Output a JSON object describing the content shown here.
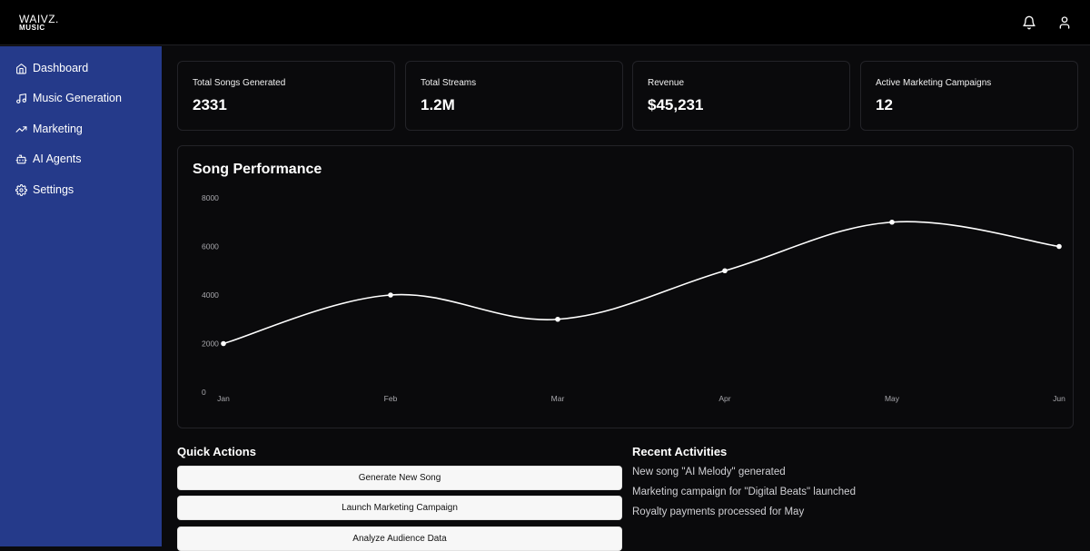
{
  "brand": {
    "line1": "WAIVZ.",
    "line2": "MUSIC"
  },
  "header": {
    "icons": [
      "bell-icon",
      "user-icon"
    ]
  },
  "sidebar": {
    "items": [
      {
        "label": "Dashboard",
        "icon": "home-icon"
      },
      {
        "label": "Music Generation",
        "icon": "music-icon"
      },
      {
        "label": "Marketing",
        "icon": "trending-icon"
      },
      {
        "label": "AI Agents",
        "icon": "bot-icon"
      },
      {
        "label": "Settings",
        "icon": "gear-icon"
      }
    ]
  },
  "stats": [
    {
      "label": "Total Songs Generated",
      "value": "2331"
    },
    {
      "label": "Total Streams",
      "value": "1.2M"
    },
    {
      "label": "Revenue",
      "value": "$45,231"
    },
    {
      "label": "Active Marketing Campaigns",
      "value": "12"
    }
  ],
  "chart_data": {
    "type": "line",
    "title": "Song Performance",
    "categories": [
      "Jan",
      "Feb",
      "Mar",
      "Apr",
      "May",
      "Jun"
    ],
    "values": [
      2000,
      4000,
      3000,
      5000,
      7000,
      6000
    ],
    "yticks": [
      "0",
      "2000",
      "4000",
      "6000",
      "8000"
    ],
    "ylim": [
      0,
      8000
    ],
    "xlabel": "",
    "ylabel": "",
    "grid": false,
    "line_color": "#ffffff"
  },
  "quick_actions": {
    "title": "Quick Actions",
    "buttons": [
      "Generate New Song",
      "Launch Marketing Campaign",
      "Analyze Audience Data"
    ]
  },
  "recent": {
    "title": "Recent Activities",
    "items": [
      "New song \"AI Melody\" generated",
      "Marketing campaign for \"Digital Beats\" launched",
      "Royalty payments processed for May"
    ]
  }
}
